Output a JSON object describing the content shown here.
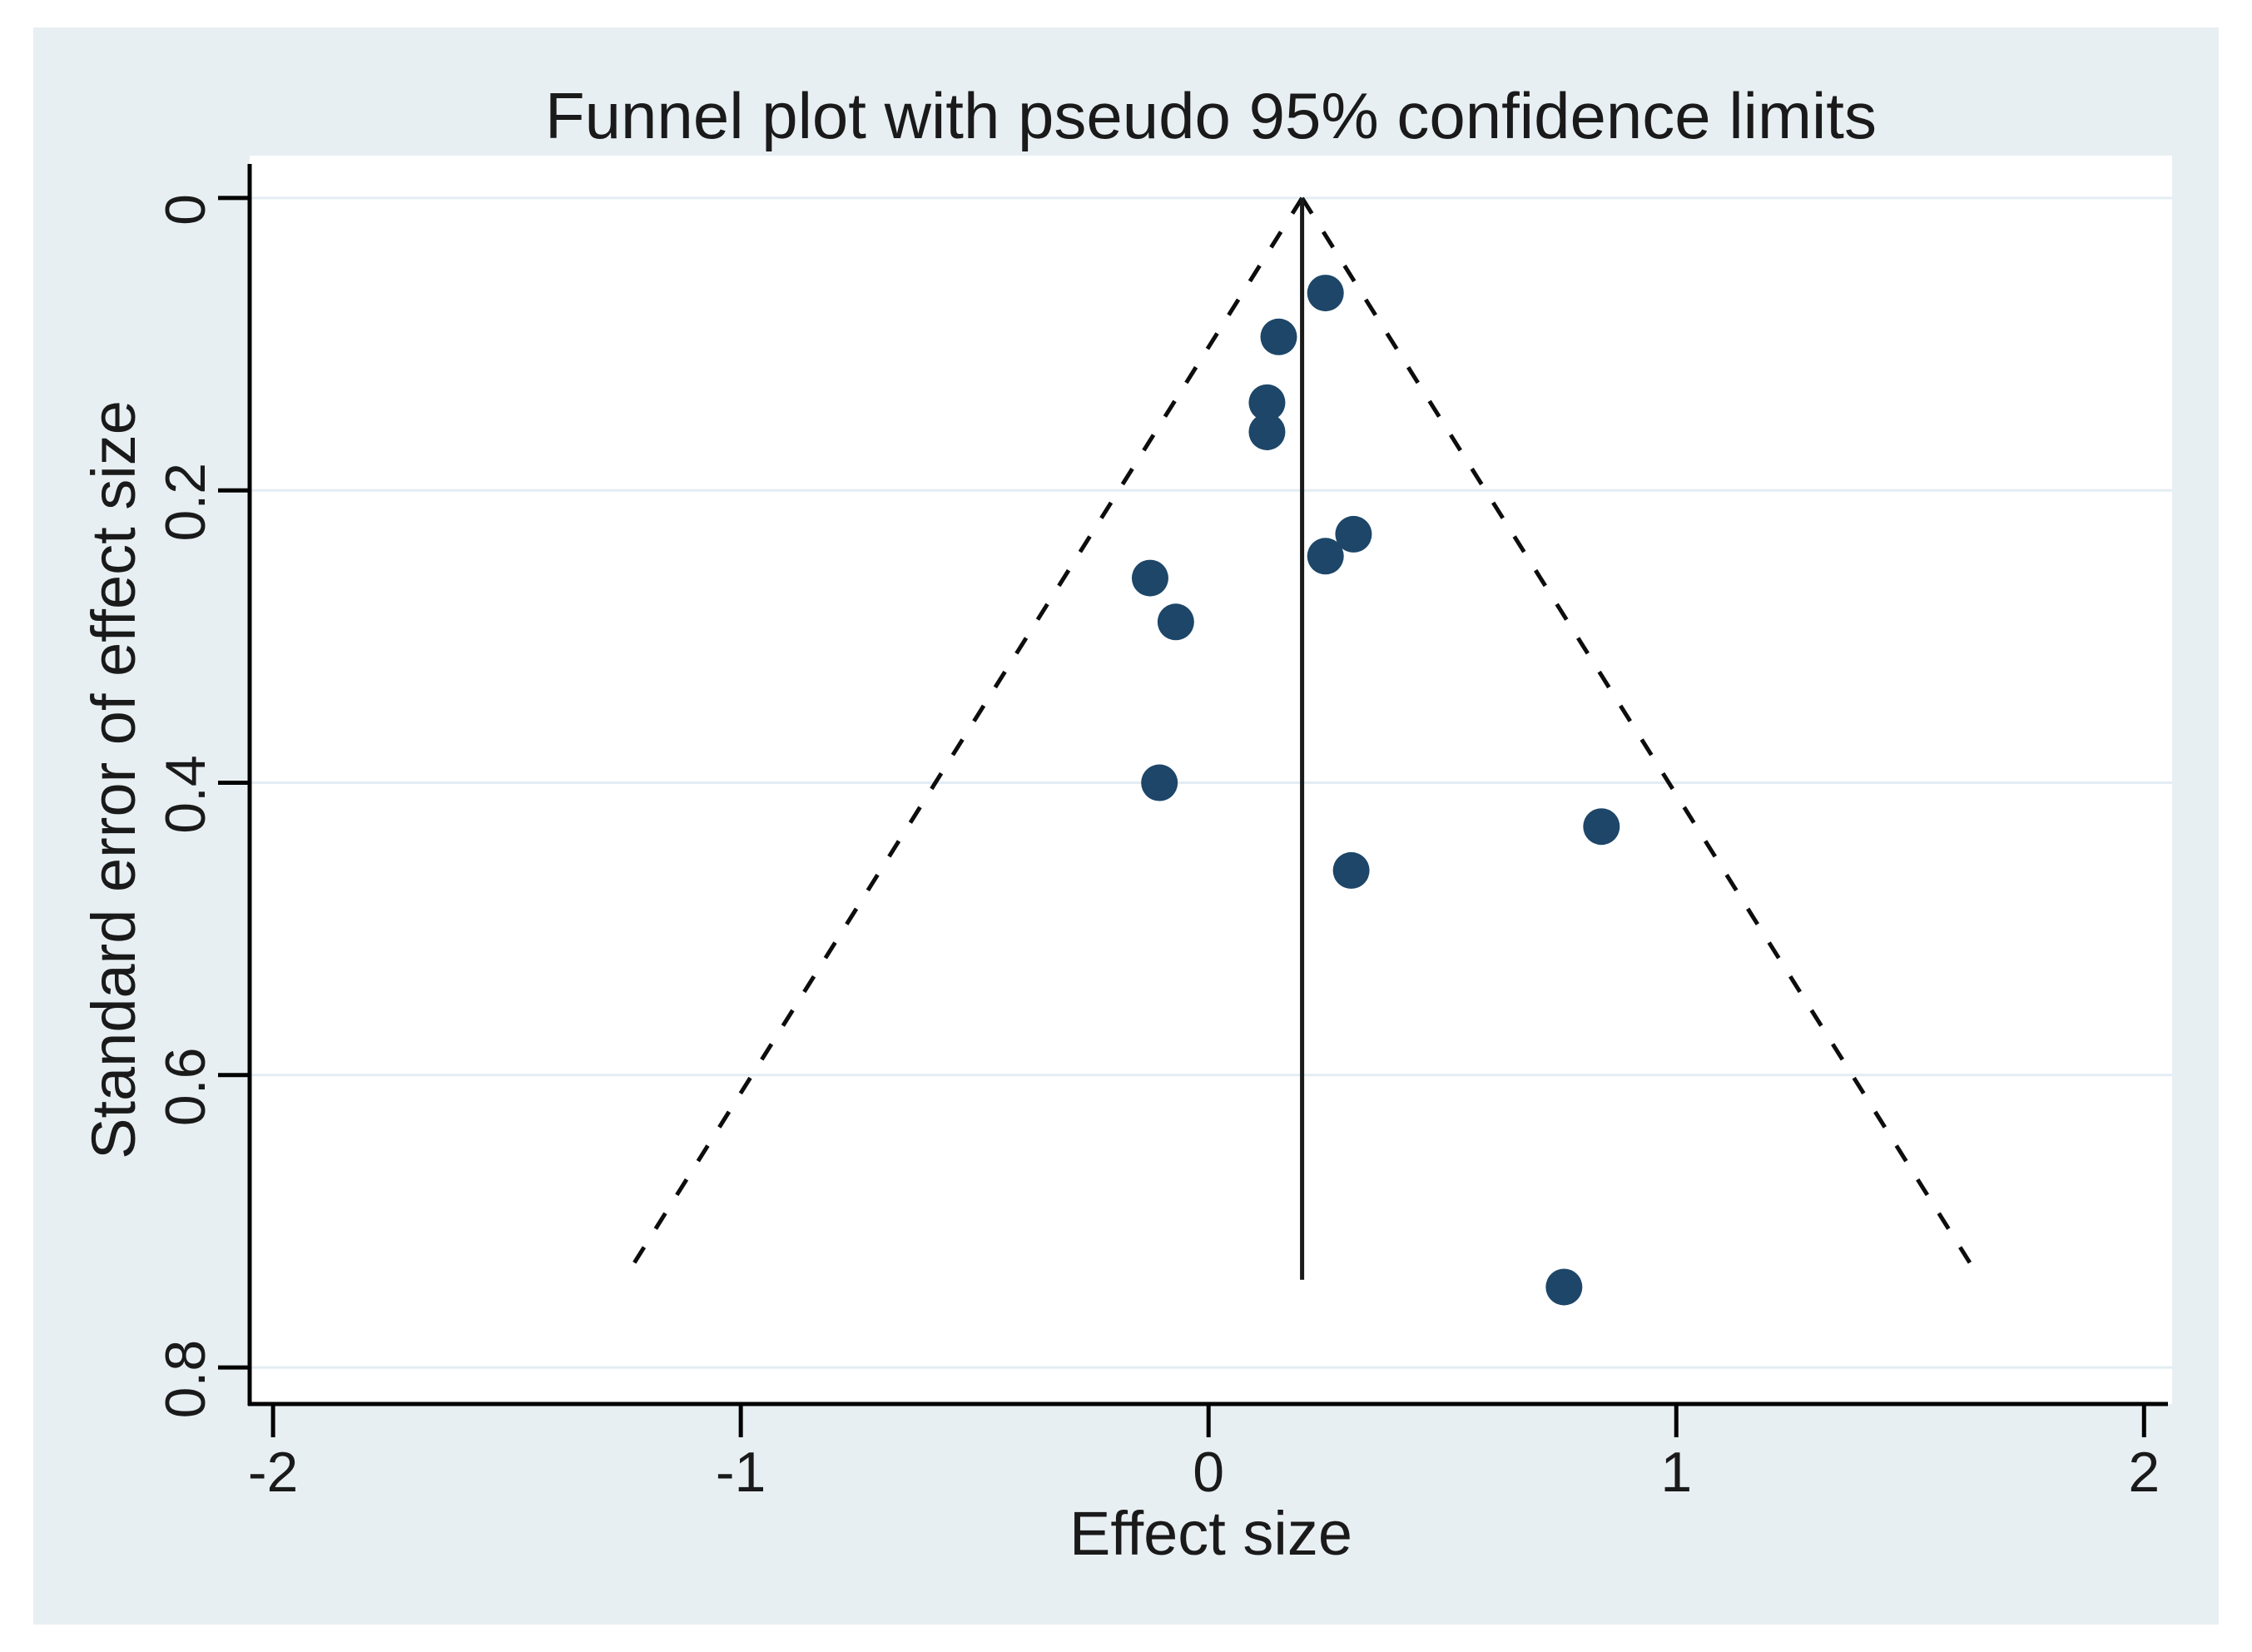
{
  "colors": {
    "figure_background": "#ffffff",
    "graph_background": "#e8eff3",
    "plot_background": "#ffffff",
    "gridline": "#e3edf3",
    "axis_line": "#000000",
    "text": "#1a1a1a",
    "marker": "#1d4668",
    "funnel_line": "#0d0d0d",
    "center_line": "#1a1a1a"
  },
  "chart_data": {
    "type": "scatter",
    "subtype": "funnel-plot",
    "title": "Funnel plot with pseudo 95% confidence limits",
    "xlabel": "Effect size",
    "ylabel": "Standard error of effect size",
    "x_ticks": [
      -2,
      -1,
      0,
      1,
      2
    ],
    "x_tick_labels": [
      "-2",
      "-1",
      "0",
      "1",
      "2"
    ],
    "y_ticks": [
      0,
      0.2,
      0.4,
      0.6,
      0.8
    ],
    "y_tick_labels": [
      "0",
      "0.2",
      "0.4",
      "0.6",
      "0.8"
    ],
    "xlim": [
      -2.05,
      2.06
    ],
    "ylim": [
      -0.029,
      0.825
    ],
    "y_axis_reversed": true,
    "grid": "horizontal-only",
    "legend": "none",
    "pooled_effect": 0.2,
    "ci_multiplier": 1.96,
    "funnel_se_max": 0.74,
    "funnel_line_style": "dashed",
    "center_line_style": "solid",
    "points": [
      {
        "effect": 0.25,
        "se": 0.065
      },
      {
        "effect": 0.15,
        "se": 0.095
      },
      {
        "effect": 0.125,
        "se": 0.14
      },
      {
        "effect": 0.125,
        "se": 0.16
      },
      {
        "effect": 0.31,
        "se": 0.23
      },
      {
        "effect": 0.25,
        "se": 0.245
      },
      {
        "effect": -0.125,
        "se": 0.26
      },
      {
        "effect": -0.07,
        "se": 0.29
      },
      {
        "effect": -0.105,
        "se": 0.4
      },
      {
        "effect": 0.84,
        "se": 0.43
      },
      {
        "effect": 0.305,
        "se": 0.46
      },
      {
        "effect": 0.76,
        "se": 0.745
      }
    ]
  }
}
